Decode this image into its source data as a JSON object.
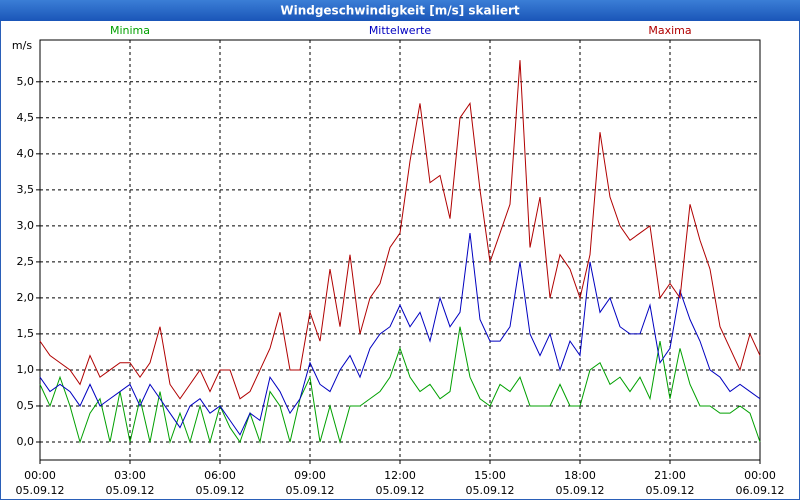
{
  "chart_data": {
    "type": "line",
    "title": "Windgeschwindigkeit [m/s] skaliert",
    "y_label": "m/s",
    "x": [
      0,
      20,
      40,
      60,
      80,
      100,
      120,
      140,
      160,
      180,
      200,
      220,
      240,
      260,
      280,
      300,
      320,
      340,
      360,
      380,
      400,
      420,
      440,
      460,
      480,
      500,
      520,
      540,
      560,
      580,
      600,
      620,
      640,
      660,
      680,
      700,
      720,
      740,
      760,
      780,
      800,
      820,
      840,
      860,
      880,
      900,
      920,
      940,
      960,
      980,
      1000,
      1020,
      1040,
      1060,
      1080,
      1100,
      1120,
      1140,
      1160,
      1180,
      1200,
      1220,
      1240,
      1260,
      1280,
      1300,
      1320,
      1340,
      1360,
      1380,
      1400,
      1420,
      1440
    ],
    "series": [
      {
        "name": "Minima",
        "color": "#00a000",
        "values": [
          0.8,
          0.5,
          0.9,
          0.5,
          0,
          0.4,
          0.6,
          0,
          0.7,
          0,
          0.6,
          0,
          0.7,
          0,
          0.4,
          0,
          0.5,
          0,
          0.5,
          0.2,
          0,
          0.4,
          0,
          0.7,
          0.5,
          0,
          0.6,
          0.9,
          0,
          0.5,
          0,
          0.5,
          0.5,
          0.6,
          0.7,
          0.9,
          1.3,
          0.9,
          0.7,
          0.8,
          0.6,
          0.7,
          1.6,
          0.9,
          0.6,
          0.5,
          0.8,
          0.7,
          0.9,
          0.5,
          0.5,
          0.5,
          0.8,
          0.5,
          0.5,
          1.0,
          1.1,
          0.8,
          0.9,
          0.7,
          0.9,
          0.6,
          1.4,
          0.6,
          1.3,
          0.8,
          0.5,
          0.5,
          0.4,
          0.4,
          0.5,
          0.4,
          0
        ]
      },
      {
        "name": "Mittelwerte",
        "color": "#0000c0",
        "values": [
          0.9,
          0.7,
          0.8,
          0.7,
          0.5,
          0.8,
          0.5,
          0.6,
          0.7,
          0.8,
          0.5,
          0.8,
          0.6,
          0.4,
          0.2,
          0.5,
          0.6,
          0.4,
          0.5,
          0.3,
          0.1,
          0.4,
          0.3,
          0.9,
          0.7,
          0.4,
          0.6,
          1.1,
          0.8,
          0.7,
          1.0,
          1.2,
          0.9,
          1.3,
          1.5,
          1.6,
          1.9,
          1.6,
          1.8,
          1.4,
          2.0,
          1.6,
          1.8,
          2.9,
          1.7,
          1.4,
          1.4,
          1.6,
          2.5,
          1.5,
          1.2,
          1.5,
          1.0,
          1.4,
          1.2,
          2.5,
          1.8,
          2.0,
          1.6,
          1.5,
          1.5,
          1.9,
          1.1,
          1.3,
          2.1,
          1.7,
          1.4,
          1.0,
          0.9,
          0.7,
          0.8,
          0.7,
          0.6
        ]
      },
      {
        "name": "Maxima",
        "color": "#b00000",
        "values": [
          1.4,
          1.2,
          1.1,
          1.0,
          0.8,
          1.2,
          0.9,
          1.0,
          1.1,
          1.1,
          0.9,
          1.1,
          1.6,
          0.8,
          0.6,
          0.8,
          1.0,
          0.7,
          1.0,
          1.0,
          0.6,
          0.7,
          1.0,
          1.3,
          1.8,
          1.0,
          1.0,
          1.8,
          1.4,
          2.4,
          1.6,
          2.6,
          1.5,
          2.0,
          2.2,
          2.7,
          2.9,
          3.9,
          4.7,
          3.6,
          3.7,
          3.1,
          4.5,
          4.7,
          3.5,
          2.5,
          2.9,
          3.3,
          5.3,
          2.7,
          3.4,
          2.0,
          2.6,
          2.4,
          2.0,
          2.6,
          4.3,
          3.4,
          3.0,
          2.8,
          2.9,
          3.0,
          2.0,
          2.2,
          2.0,
          3.3,
          2.8,
          2.4,
          1.6,
          1.3,
          1.0,
          1.5,
          1.2
        ]
      }
    ],
    "xlim": [
      0,
      1440
    ],
    "xticks": [
      {
        "value": 0,
        "label": "00:00",
        "date": "05.09.12"
      },
      {
        "value": 180,
        "label": "03:00",
        "date": "05.09.12"
      },
      {
        "value": 360,
        "label": "06:00",
        "date": "05.09.12"
      },
      {
        "value": 540,
        "label": "09:00",
        "date": "05.09.12"
      },
      {
        "value": 720,
        "label": "12:00",
        "date": "05.09.12"
      },
      {
        "value": 900,
        "label": "15:00",
        "date": "05.09.12"
      },
      {
        "value": 1080,
        "label": "18:00",
        "date": "05.09.12"
      },
      {
        "value": 1260,
        "label": "21:00",
        "date": "05.09.12"
      },
      {
        "value": 1440,
        "label": "00:00",
        "date": "06.09.12"
      }
    ],
    "ylim": [
      -0.25,
      5.58
    ],
    "yticks": [
      {
        "value": 0,
        "label": "0,0"
      },
      {
        "value": 0.5,
        "label": "0,5"
      },
      {
        "value": 1,
        "label": "1,0"
      },
      {
        "value": 1.5,
        "label": "1,5"
      },
      {
        "value": 2,
        "label": "2,0"
      },
      {
        "value": 2.5,
        "label": "2,5"
      },
      {
        "value": 3,
        "label": "3,0"
      },
      {
        "value": 3.5,
        "label": "3,5"
      },
      {
        "value": 4,
        "label": "4,0"
      },
      {
        "value": 4.5,
        "label": "4,5"
      },
      {
        "value": 5,
        "label": "5,0"
      }
    ],
    "grid": true
  }
}
